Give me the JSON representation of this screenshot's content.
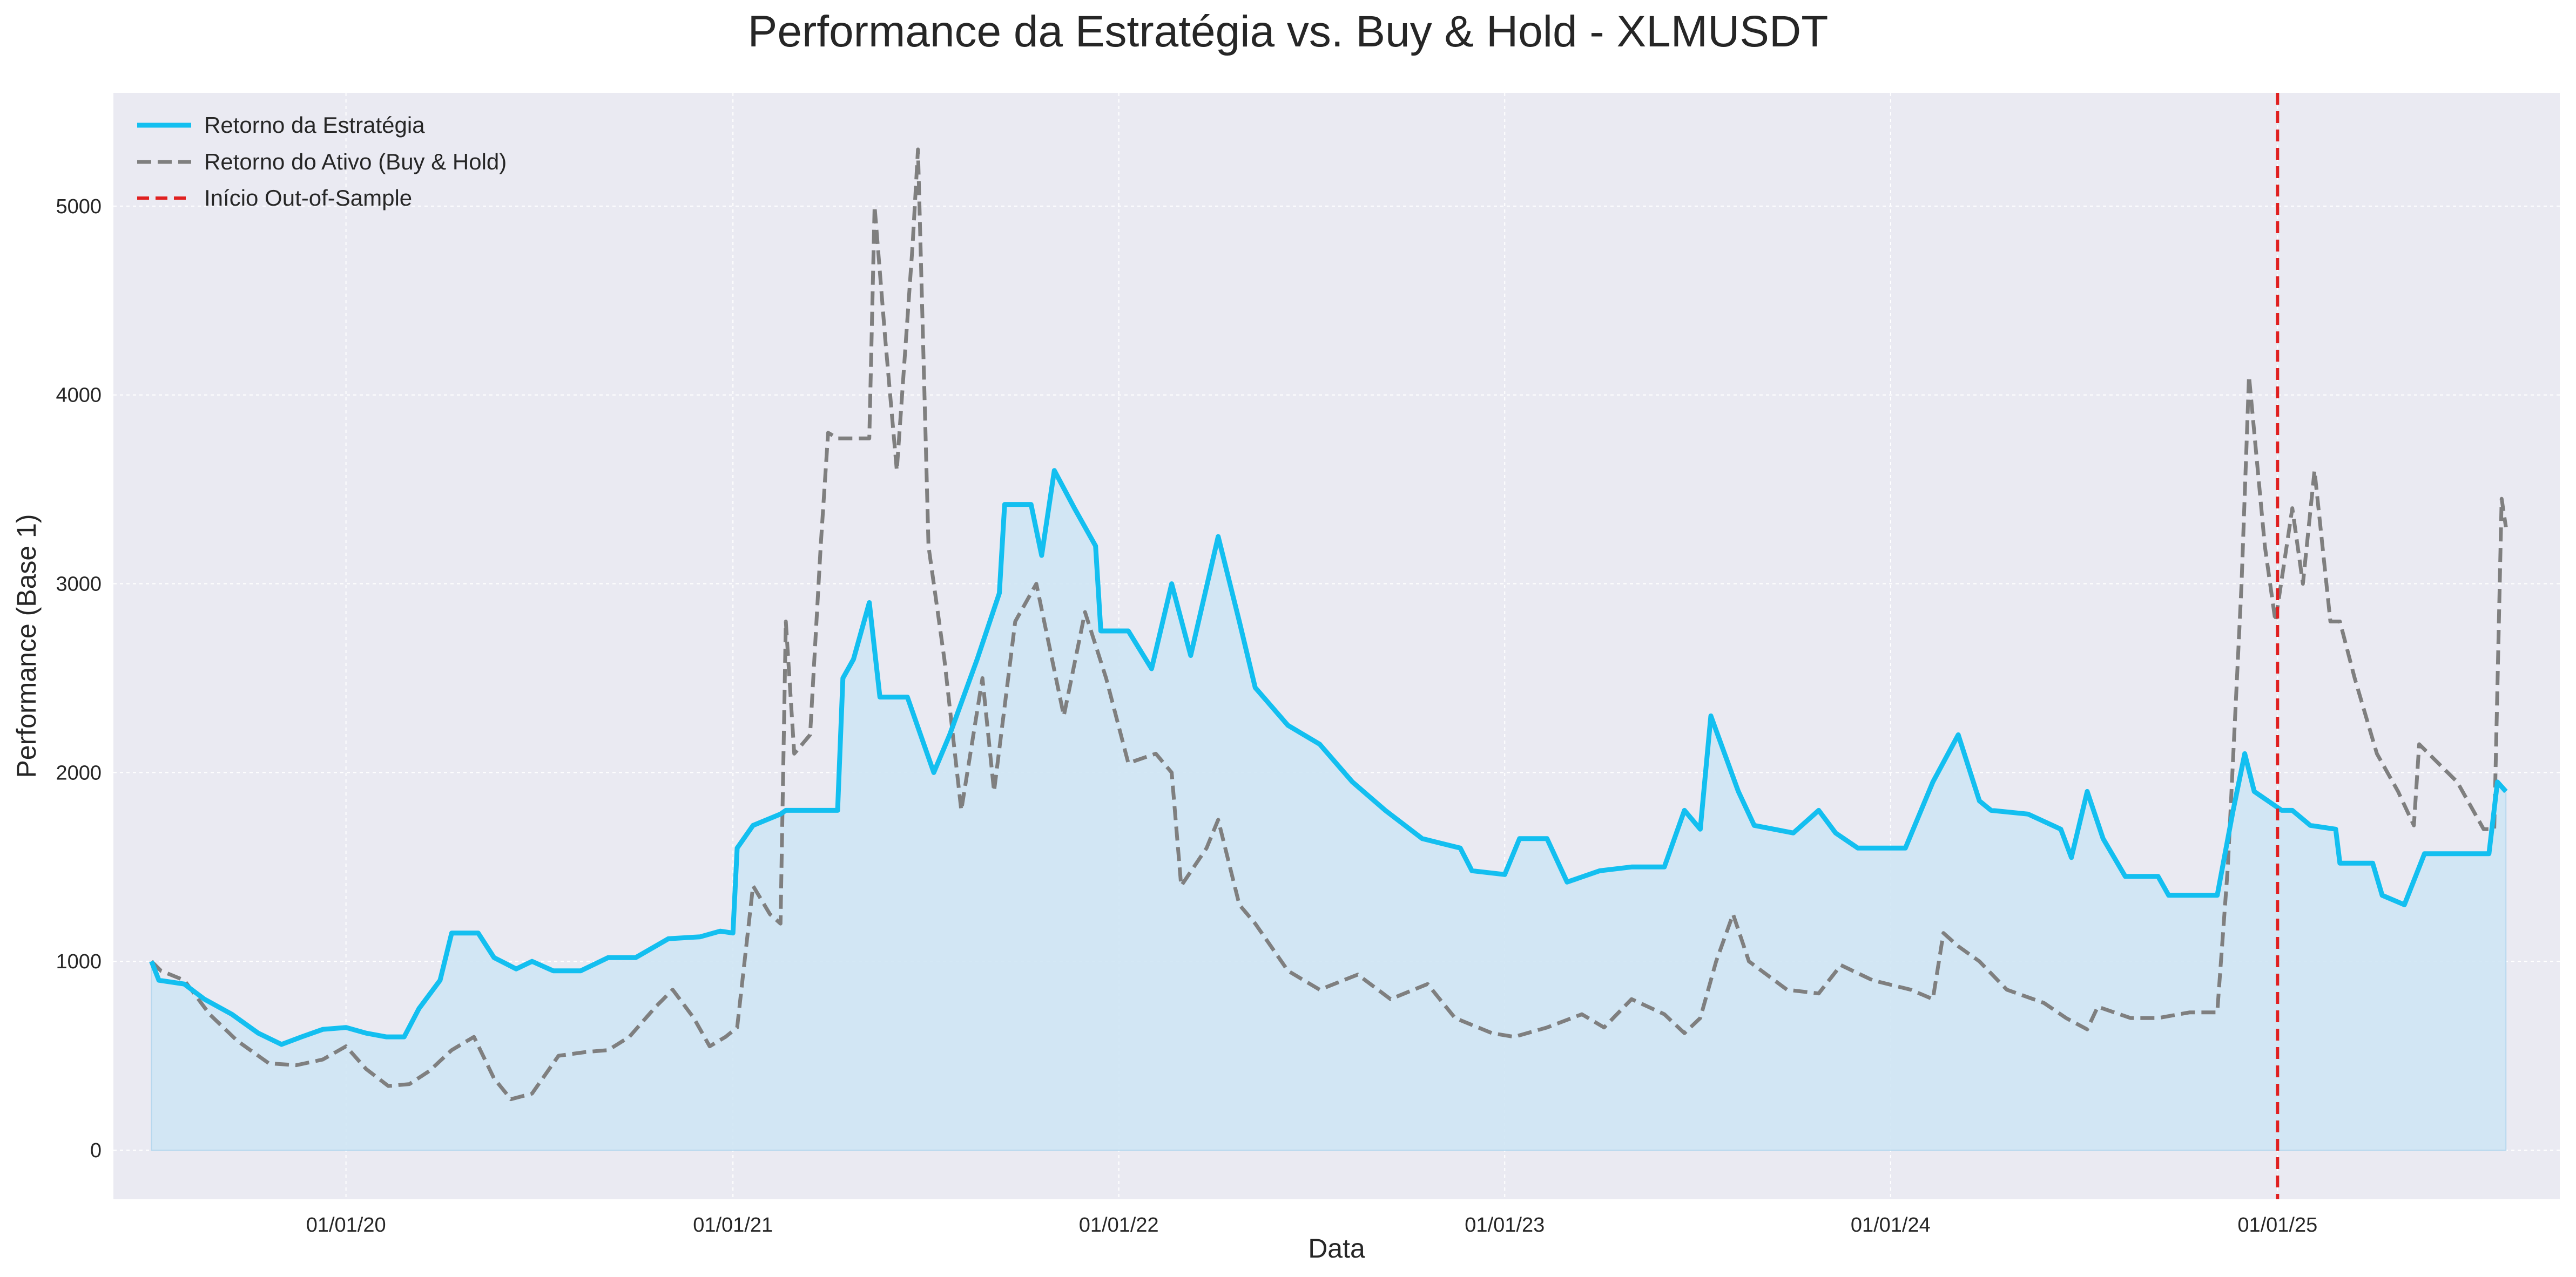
{
  "chart_data": {
    "type": "line",
    "title": "Performance da Estratégia vs. Buy & Hold - XLMUSDT",
    "xlabel": "Data",
    "ylabel": "Performance (Base 1)",
    "xlim": [
      "2019-05-26",
      "2025-09-25"
    ],
    "ylim": [
      -260,
      5600
    ],
    "grid": true,
    "legend_position": "top-left",
    "x_ticks": [
      {
        "date": "2020-01-01",
        "label": "01/01/20"
      },
      {
        "date": "2021-01-01",
        "label": "01/01/21"
      },
      {
        "date": "2022-01-01",
        "label": "01/01/22"
      },
      {
        "date": "2023-01-01",
        "label": "01/01/23"
      },
      {
        "date": "2024-01-01",
        "label": "01/01/24"
      },
      {
        "date": "2025-01-01",
        "label": "01/01/25"
      }
    ],
    "y_ticks": [
      0,
      1000,
      2000,
      3000,
      4000,
      5000
    ],
    "vline": {
      "name": "Início Out-of-Sample",
      "date": "2025-01-01",
      "color": "#e02020"
    },
    "series": [
      {
        "name": "Retorno da Estratégia",
        "color": "#13bff0",
        "style": "solid",
        "fill": "#cfe6f4",
        "points": [
          [
            "2019-07-01",
            1000
          ],
          [
            "2019-07-08",
            900
          ],
          [
            "2019-08-01",
            880
          ],
          [
            "2019-08-20",
            800
          ],
          [
            "2019-09-15",
            720
          ],
          [
            "2019-10-10",
            620
          ],
          [
            "2019-11-01",
            560
          ],
          [
            "2019-11-20",
            600
          ],
          [
            "2019-12-10",
            640
          ],
          [
            "2020-01-01",
            650
          ],
          [
            "2020-01-20",
            620
          ],
          [
            "2020-02-08",
            600
          ],
          [
            "2020-02-25",
            600
          ],
          [
            "2020-03-10",
            750
          ],
          [
            "2020-03-30",
            900
          ],
          [
            "2020-04-10",
            1150
          ],
          [
            "2020-05-05",
            1150
          ],
          [
            "2020-05-20",
            1020
          ],
          [
            "2020-06-10",
            960
          ],
          [
            "2020-06-25",
            1000
          ],
          [
            "2020-07-15",
            950
          ],
          [
            "2020-08-10",
            950
          ],
          [
            "2020-09-05",
            1020
          ],
          [
            "2020-10-01",
            1020
          ],
          [
            "2020-11-01",
            1120
          ],
          [
            "2020-12-01",
            1130
          ],
          [
            "2020-12-20",
            1160
          ],
          [
            "2021-01-01",
            1150
          ],
          [
            "2021-01-05",
            1600
          ],
          [
            "2021-01-20",
            1720
          ],
          [
            "2021-02-15",
            1780
          ],
          [
            "2021-02-20",
            1800
          ],
          [
            "2021-04-10",
            1800
          ],
          [
            "2021-04-15",
            2500
          ],
          [
            "2021-04-25",
            2600
          ],
          [
            "2021-05-10",
            2900
          ],
          [
            "2021-05-20",
            2400
          ],
          [
            "2021-06-15",
            2400
          ],
          [
            "2021-07-10",
            2000
          ],
          [
            "2021-07-25",
            2200
          ],
          [
            "2021-08-20",
            2600
          ],
          [
            "2021-09-10",
            2950
          ],
          [
            "2021-09-15",
            3420
          ],
          [
            "2021-10-10",
            3420
          ],
          [
            "2021-10-20",
            3150
          ],
          [
            "2021-11-01",
            3600
          ],
          [
            "2021-11-20",
            3400
          ],
          [
            "2021-12-10",
            3200
          ],
          [
            "2021-12-15",
            2750
          ],
          [
            "2022-01-10",
            2750
          ],
          [
            "2022-02-01",
            2550
          ],
          [
            "2022-02-20",
            3000
          ],
          [
            "2022-03-10",
            2620
          ],
          [
            "2022-04-05",
            3250
          ],
          [
            "2022-04-25",
            2800
          ],
          [
            "2022-05-10",
            2450
          ],
          [
            "2022-06-10",
            2250
          ],
          [
            "2022-07-10",
            2150
          ],
          [
            "2022-08-10",
            1950
          ],
          [
            "2022-09-10",
            1800
          ],
          [
            "2022-10-15",
            1650
          ],
          [
            "2022-11-20",
            1600
          ],
          [
            "2022-12-01",
            1480
          ],
          [
            "2023-01-01",
            1460
          ],
          [
            "2023-01-15",
            1650
          ],
          [
            "2023-02-10",
            1650
          ],
          [
            "2023-03-01",
            1420
          ],
          [
            "2023-04-01",
            1480
          ],
          [
            "2023-05-01",
            1500
          ],
          [
            "2023-06-01",
            1500
          ],
          [
            "2023-06-20",
            1800
          ],
          [
            "2023-07-05",
            1700
          ],
          [
            "2023-07-15",
            2300
          ],
          [
            "2023-08-10",
            1900
          ],
          [
            "2023-08-25",
            1720
          ],
          [
            "2023-10-01",
            1680
          ],
          [
            "2023-10-25",
            1800
          ],
          [
            "2023-11-10",
            1680
          ],
          [
            "2023-12-01",
            1600
          ],
          [
            "2024-01-01",
            1600
          ],
          [
            "2024-01-15",
            1600
          ],
          [
            "2024-02-10",
            1950
          ],
          [
            "2024-03-05",
            2200
          ],
          [
            "2024-03-25",
            1850
          ],
          [
            "2024-04-05",
            1800
          ],
          [
            "2024-05-10",
            1780
          ],
          [
            "2024-06-10",
            1700
          ],
          [
            "2024-06-20",
            1550
          ],
          [
            "2024-07-05",
            1900
          ],
          [
            "2024-07-20",
            1650
          ],
          [
            "2024-08-10",
            1450
          ],
          [
            "2024-09-10",
            1450
          ],
          [
            "2024-09-20",
            1350
          ],
          [
            "2024-11-05",
            1350
          ],
          [
            "2024-11-20",
            1800
          ],
          [
            "2024-12-01",
            2100
          ],
          [
            "2024-12-10",
            1900
          ],
          [
            "2025-01-05",
            1800
          ],
          [
            "2025-01-15",
            1800
          ],
          [
            "2025-02-01",
            1720
          ],
          [
            "2025-02-25",
            1700
          ],
          [
            "2025-03-01",
            1520
          ],
          [
            "2025-04-01",
            1520
          ],
          [
            "2025-04-10",
            1350
          ],
          [
            "2025-05-01",
            1300
          ],
          [
            "2025-05-20",
            1570
          ],
          [
            "2025-07-20",
            1570
          ],
          [
            "2025-07-28",
            1950
          ],
          [
            "2025-08-05",
            1900
          ]
        ]
      },
      {
        "name": "Retorno do Ativo (Buy & Hold)",
        "color": "#7f7f7f",
        "style": "dashed",
        "points": [
          [
            "2019-07-01",
            1000
          ],
          [
            "2019-07-10",
            950
          ],
          [
            "2019-08-01",
            900
          ],
          [
            "2019-08-25",
            720
          ],
          [
            "2019-09-20",
            580
          ],
          [
            "2019-10-20",
            460
          ],
          [
            "2019-11-15",
            450
          ],
          [
            "2019-12-10",
            480
          ],
          [
            "2020-01-01",
            550
          ],
          [
            "2020-01-20",
            430
          ],
          [
            "2020-02-10",
            340
          ],
          [
            "2020-03-01",
            350
          ],
          [
            "2020-03-20",
            420
          ],
          [
            "2020-04-10",
            530
          ],
          [
            "2020-05-01",
            600
          ],
          [
            "2020-05-20",
            380
          ],
          [
            "2020-06-05",
            270
          ],
          [
            "2020-06-25",
            300
          ],
          [
            "2020-07-20",
            500
          ],
          [
            "2020-08-15",
            520
          ],
          [
            "2020-09-05",
            530
          ],
          [
            "2020-09-25",
            600
          ],
          [
            "2020-10-20",
            760
          ],
          [
            "2020-11-05",
            850
          ],
          [
            "2020-11-25",
            700
          ],
          [
            "2020-12-10",
            550
          ],
          [
            "2020-12-25",
            600
          ],
          [
            "2021-01-05",
            650
          ],
          [
            "2021-01-20",
            1400
          ],
          [
            "2021-02-05",
            1250
          ],
          [
            "2021-02-15",
            1200
          ],
          [
            "2021-02-20",
            2800
          ],
          [
            "2021-02-28",
            2100
          ],
          [
            "2021-03-15",
            2200
          ],
          [
            "2021-03-25",
            3200
          ],
          [
            "2021-04-01",
            3800
          ],
          [
            "2021-04-10",
            3770
          ],
          [
            "2021-05-10",
            3770
          ],
          [
            "2021-05-15",
            5000
          ],
          [
            "2021-05-25",
            4300
          ],
          [
            "2021-06-05",
            3600
          ],
          [
            "2021-06-20",
            4800
          ],
          [
            "2021-06-25",
            5300
          ],
          [
            "2021-07-05",
            3200
          ],
          [
            "2021-07-20",
            2600
          ],
          [
            "2021-08-05",
            1800
          ],
          [
            "2021-08-25",
            2500
          ],
          [
            "2021-09-05",
            1900
          ],
          [
            "2021-09-25",
            2800
          ],
          [
            "2021-10-15",
            3000
          ],
          [
            "2021-11-10",
            2300
          ],
          [
            "2021-11-30",
            2850
          ],
          [
            "2021-12-20",
            2500
          ],
          [
            "2022-01-10",
            2050
          ],
          [
            "2022-02-05",
            2100
          ],
          [
            "2022-02-20",
            2000
          ],
          [
            "2022-03-01",
            1400
          ],
          [
            "2022-03-25",
            1600
          ],
          [
            "2022-04-05",
            1750
          ],
          [
            "2022-04-25",
            1300
          ],
          [
            "2022-05-10",
            1200
          ],
          [
            "2022-06-10",
            950
          ],
          [
            "2022-07-10",
            850
          ],
          [
            "2022-08-15",
            930
          ],
          [
            "2022-09-15",
            800
          ],
          [
            "2022-10-20",
            880
          ],
          [
            "2022-11-15",
            700
          ],
          [
            "2022-12-20",
            620
          ],
          [
            "2023-01-10",
            600
          ],
          [
            "2023-02-10",
            650
          ],
          [
            "2023-03-15",
            720
          ],
          [
            "2023-04-05",
            650
          ],
          [
            "2023-05-01",
            800
          ],
          [
            "2023-06-01",
            720
          ],
          [
            "2023-06-20",
            620
          ],
          [
            "2023-07-05",
            700
          ],
          [
            "2023-07-20",
            1000
          ],
          [
            "2023-08-05",
            1250
          ],
          [
            "2023-08-20",
            1000
          ],
          [
            "2023-09-25",
            850
          ],
          [
            "2023-10-25",
            830
          ],
          [
            "2023-11-15",
            980
          ],
          [
            "2023-12-15",
            900
          ],
          [
            "2024-01-20",
            850
          ],
          [
            "2024-02-10",
            800
          ],
          [
            "2024-02-20",
            1150
          ],
          [
            "2024-03-05",
            1080
          ],
          [
            "2024-03-25",
            1000
          ],
          [
            "2024-04-20",
            850
          ],
          [
            "2024-05-25",
            780
          ],
          [
            "2024-06-15",
            700
          ],
          [
            "2024-07-05",
            640
          ],
          [
            "2024-07-15",
            760
          ],
          [
            "2024-08-15",
            700
          ],
          [
            "2024-09-10",
            700
          ],
          [
            "2024-10-10",
            730
          ],
          [
            "2024-11-05",
            730
          ],
          [
            "2024-11-15",
            1500
          ],
          [
            "2024-11-28",
            3000
          ],
          [
            "2024-12-05",
            4100
          ],
          [
            "2024-12-20",
            3200
          ],
          [
            "2024-12-30",
            2800
          ],
          [
            "2025-01-15",
            3400
          ],
          [
            "2025-01-25",
            3000
          ],
          [
            "2025-02-05",
            3600
          ],
          [
            "2025-02-20",
            2800
          ],
          [
            "2025-03-01",
            2800
          ],
          [
            "2025-03-15",
            2500
          ],
          [
            "2025-04-05",
            2100
          ],
          [
            "2025-04-25",
            1900
          ],
          [
            "2025-05-10",
            1720
          ],
          [
            "2025-05-15",
            2150
          ],
          [
            "2025-06-20",
            1950
          ],
          [
            "2025-07-15",
            1700
          ],
          [
            "2025-07-25",
            1700
          ],
          [
            "2025-08-01",
            3450
          ],
          [
            "2025-08-05",
            3300
          ]
        ]
      }
    ],
    "legend": [
      {
        "label": "Retorno da Estratégia",
        "color": "#13bff0",
        "style": "solid"
      },
      {
        "label": "Retorno do Ativo (Buy & Hold)",
        "color": "#7f7f7f",
        "style": "dashed"
      },
      {
        "label": "Início Out-of-Sample",
        "color": "#e02020",
        "style": "dashed"
      }
    ]
  }
}
